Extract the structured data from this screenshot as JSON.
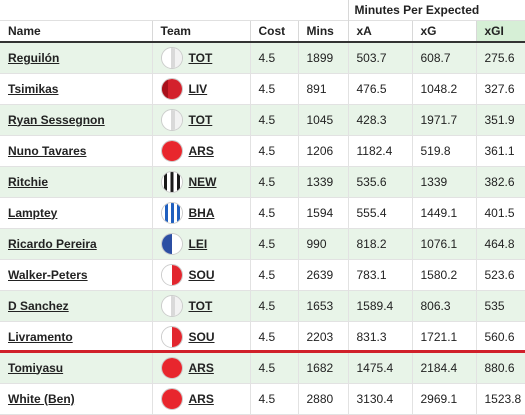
{
  "header": {
    "group_label": "Minutes Per Expected",
    "columns": [
      "Name",
      "Team",
      "Cost",
      "Mins",
      "xA",
      "xG",
      "xGI"
    ]
  },
  "rows": [
    {
      "name": "Reguilón",
      "team": "TOT",
      "cost": "4.5",
      "mins": "1899",
      "xa": "503.7",
      "xg": "608.7",
      "xgi": "275.6",
      "shirt_icon": "tot-shirt-icon"
    },
    {
      "name": "Tsimikas",
      "team": "LIV",
      "cost": "4.5",
      "mins": "891",
      "xa": "476.5",
      "xg": "1048.2",
      "xgi": "327.6",
      "shirt_icon": "liv-shirt-icon"
    },
    {
      "name": "Ryan Sessegnon",
      "team": "TOT",
      "cost": "4.5",
      "mins": "1045",
      "xa": "428.3",
      "xg": "1971.7",
      "xgi": "351.9",
      "shirt_icon": "tot-shirt-icon"
    },
    {
      "name": "Nuno Tavares",
      "team": "ARS",
      "cost": "4.5",
      "mins": "1206",
      "xa": "1182.4",
      "xg": "519.8",
      "xgi": "361.1",
      "shirt_icon": "ars-shirt-icon"
    },
    {
      "name": "Ritchie",
      "team": "NEW",
      "cost": "4.5",
      "mins": "1339",
      "xa": "535.6",
      "xg": "1339",
      "xgi": "382.6",
      "shirt_icon": "new-shirt-icon"
    },
    {
      "name": "Lamptey",
      "team": "BHA",
      "cost": "4.5",
      "mins": "1594",
      "xa": "555.4",
      "xg": "1449.1",
      "xgi": "401.5",
      "shirt_icon": "bha-shirt-icon"
    },
    {
      "name": "Ricardo Pereira",
      "team": "LEI",
      "cost": "4.5",
      "mins": "990",
      "xa": "818.2",
      "xg": "1076.1",
      "xgi": "464.8",
      "shirt_icon": "lei-shirt-icon"
    },
    {
      "name": "Walker-Peters",
      "team": "SOU",
      "cost": "4.5",
      "mins": "2639",
      "xa": "783.1",
      "xg": "1580.2",
      "xgi": "523.6",
      "shirt_icon": "sou-shirt-icon"
    },
    {
      "name": "D Sanchez",
      "team": "TOT",
      "cost": "4.5",
      "mins": "1653",
      "xa": "1589.4",
      "xg": "806.3",
      "xgi": "535",
      "shirt_icon": "tot-shirt-icon"
    },
    {
      "name": "Livramento",
      "team": "SOU",
      "cost": "4.5",
      "mins": "2203",
      "xa": "831.3",
      "xg": "1721.1",
      "xgi": "560.6",
      "shirt_icon": "sou-shirt-icon"
    },
    {
      "name": "Tomiyasu",
      "team": "ARS",
      "cost": "4.5",
      "mins": "1682",
      "xa": "1475.4",
      "xg": "2184.4",
      "xgi": "880.6",
      "shirt_icon": "ars-shirt-icon"
    },
    {
      "name": "White (Ben)",
      "team": "ARS",
      "cost": "4.5",
      "mins": "2880",
      "xa": "3130.4",
      "xg": "2969.1",
      "xgi": "1523.8",
      "shirt_icon": "ars-shirt-icon"
    }
  ],
  "colors": {
    "row_shade": "#e8f4e8",
    "sorted_header": "#d6efd6",
    "divider": "#d0202a",
    "tot": "#ffffff",
    "liv": "#d3212c",
    "ars": "#e8262d",
    "new": "#1a1a1a",
    "bha": "#1f5fbf",
    "lei": "#2c4fa3",
    "sou": "#e2262e"
  }
}
